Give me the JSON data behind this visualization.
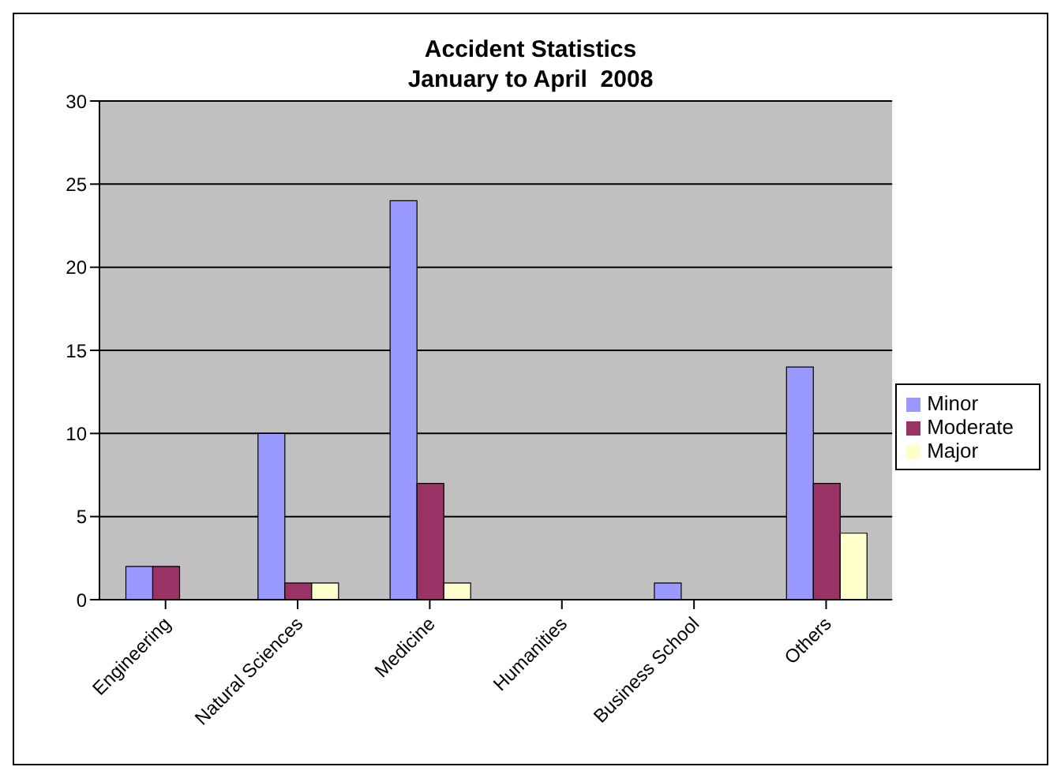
{
  "chart_data": {
    "type": "bar",
    "title": "Accident Statistics",
    "subtitle": "January to April  2008",
    "categories": [
      "Engineering",
      "Natural Sciences",
      "Medicine",
      "Humanities",
      "Business School",
      "Others"
    ],
    "series": [
      {
        "name": "Minor",
        "color": "#9999ff",
        "values": [
          2,
          10,
          24,
          0,
          1,
          14
        ]
      },
      {
        "name": "Moderate",
        "color": "#993366",
        "values": [
          2,
          1,
          7,
          0,
          0,
          7
        ]
      },
      {
        "name": "Major",
        "color": "#ffffcc",
        "values": [
          0,
          1,
          1,
          0,
          0,
          4
        ]
      }
    ],
    "ylim": [
      0,
      30
    ],
    "yticks": [
      0,
      5,
      10,
      15,
      20,
      25,
      30
    ],
    "grid": "y",
    "legend": "right"
  }
}
